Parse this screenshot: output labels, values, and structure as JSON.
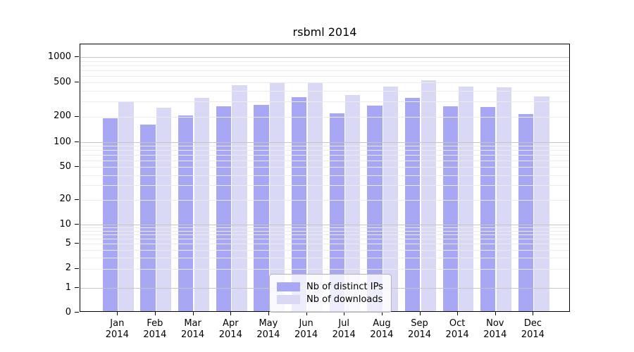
{
  "title": "rsbml 2014",
  "colors": {
    "distinct_ips_bar": "#a7a7f3",
    "downloads_bar": "#d9d9f6",
    "grid_minor": "#ebebeb",
    "grid_decade": "#c6c6c6",
    "axis": "#000000",
    "legend_border": "#b4b4b4"
  },
  "legend": {
    "items": [
      {
        "label": "Nb of distinct IPs",
        "swatch_color": "#a7a7f3"
      },
      {
        "label": "Nb of downloads",
        "swatch_color": "#d9d9f6"
      }
    ]
  },
  "chart_data": {
    "type": "bar",
    "title": "rsbml 2014",
    "categories": [
      "Jan",
      "Feb",
      "Mar",
      "Apr",
      "May",
      "Jun",
      "Jul",
      "Aug",
      "Sep",
      "Oct",
      "Nov",
      "Dec"
    ],
    "category_year": "2014",
    "series": [
      {
        "name": "Nb of distinct IPs",
        "values": [
          185,
          155,
          200,
          255,
          265,
          325,
          210,
          260,
          320,
          255,
          250,
          205
        ]
      },
      {
        "name": "Nb of downloads",
        "values": [
          290,
          245,
          320,
          450,
          490,
          490,
          345,
          435,
          515,
          430,
          425,
          330
        ]
      }
    ],
    "xlabel": "",
    "ylabel": "",
    "y_ticks": [
      0,
      1,
      2,
      5,
      10,
      20,
      50,
      100,
      200,
      500,
      1000
    ],
    "ylim": [
      0,
      1000
    ],
    "y_scale": "log-with-zero-baseline",
    "grid": "horizontal major (decades darker) + log minor lines, drawn over bars",
    "legend_position": "lower center"
  }
}
